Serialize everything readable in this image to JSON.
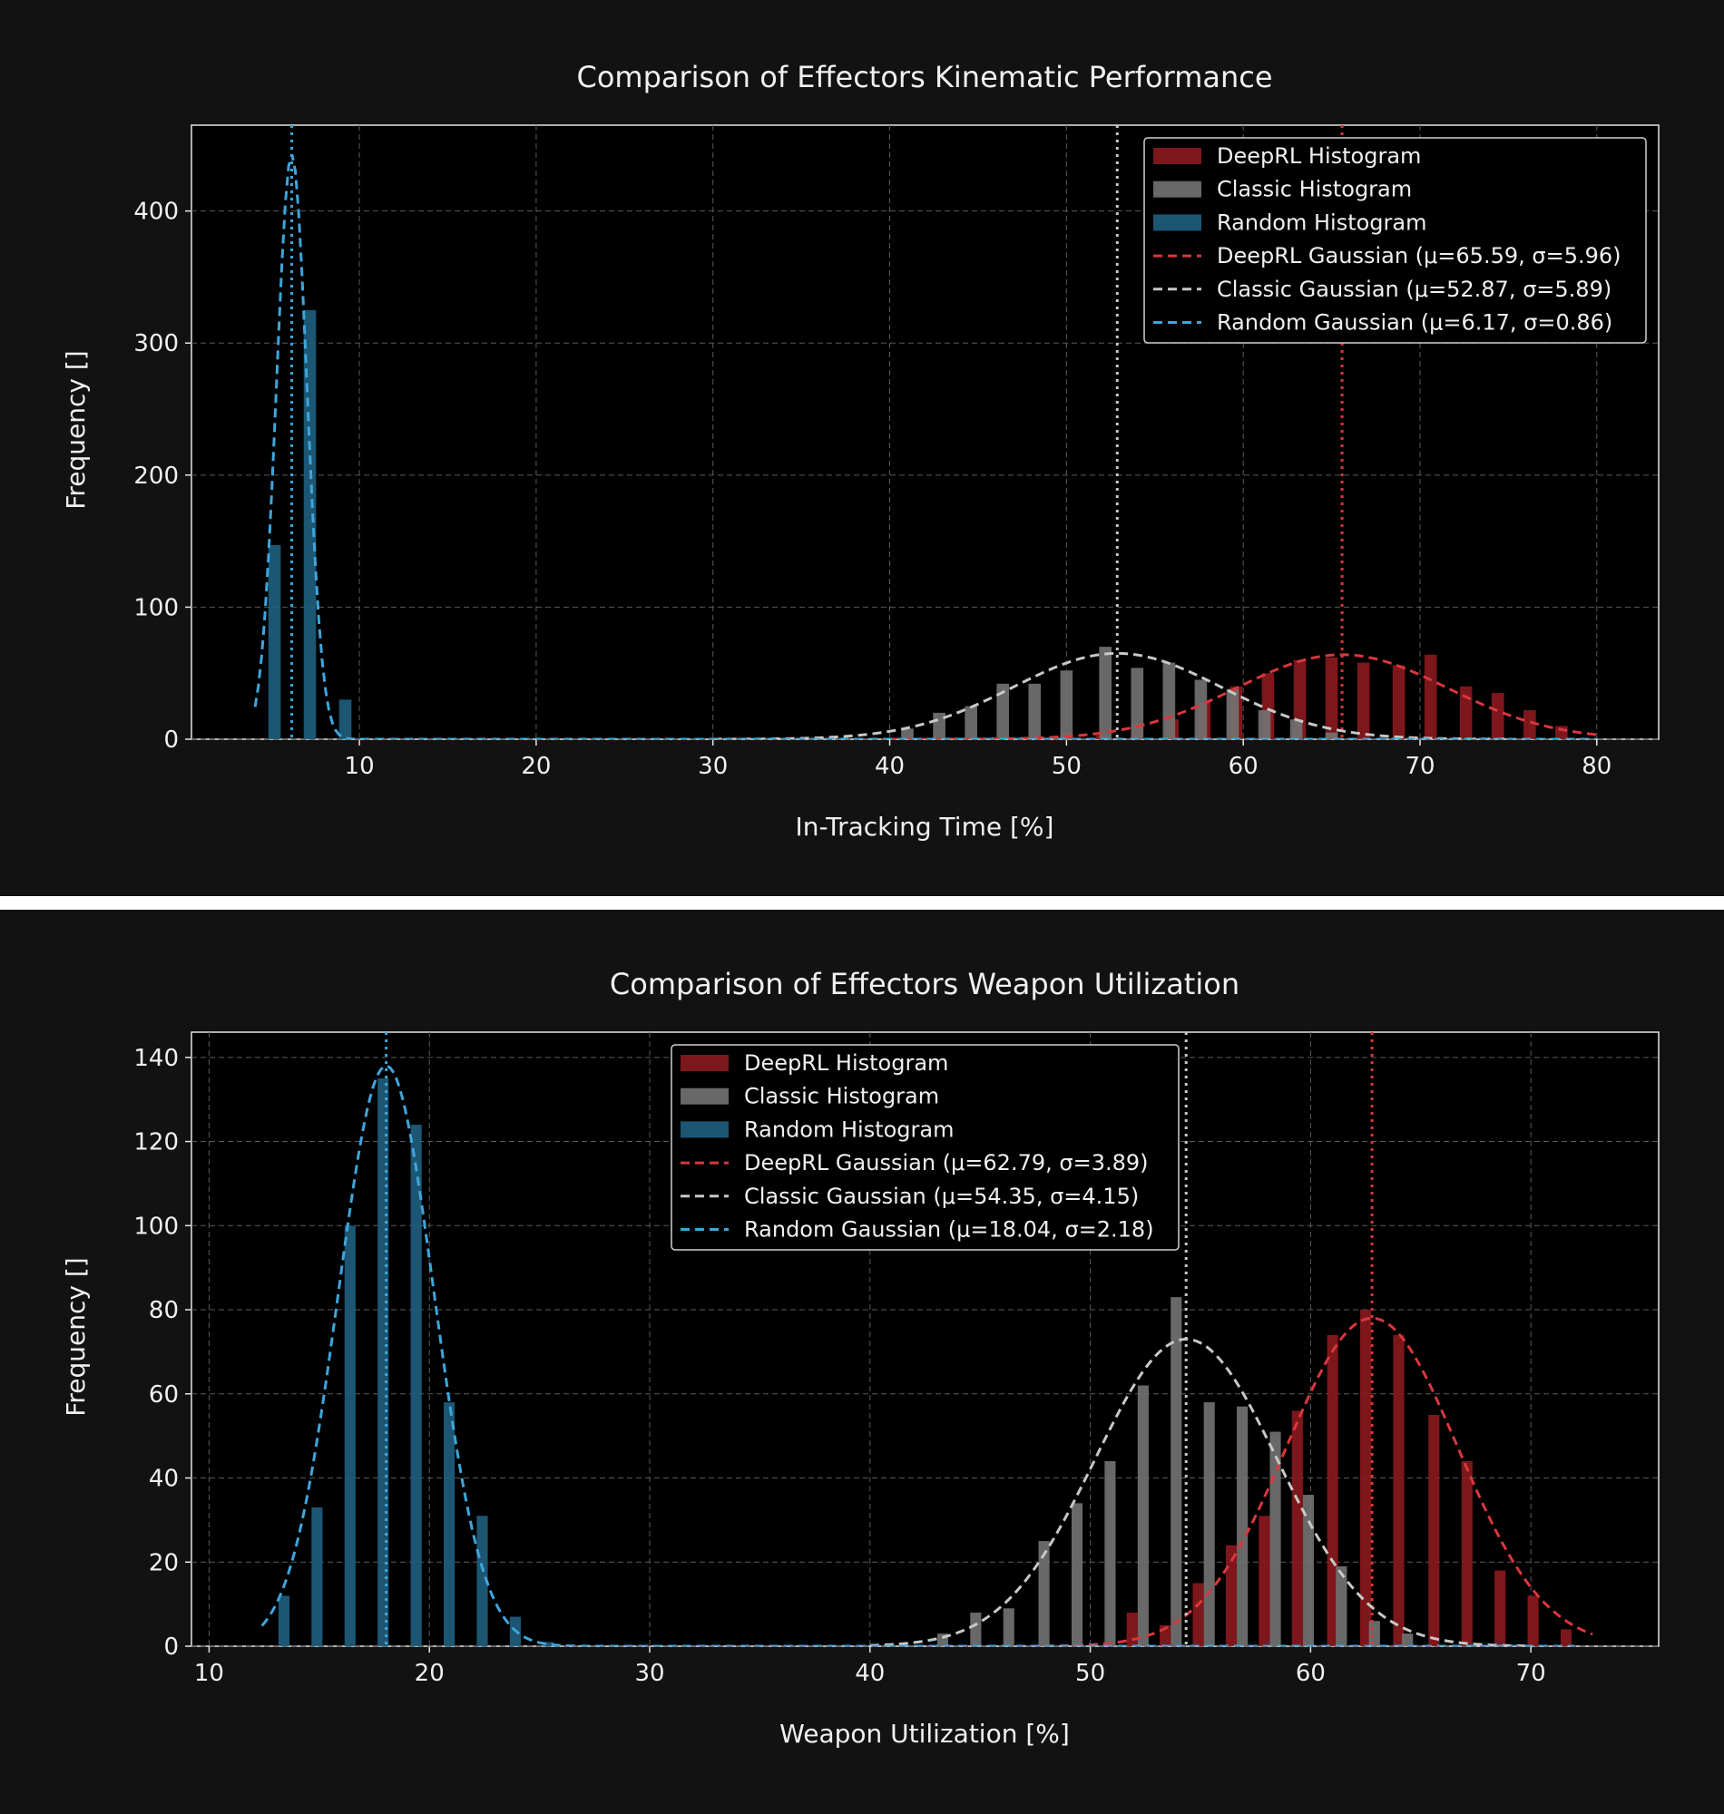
{
  "chart_data": [
    {
      "type": "bar",
      "title": "Comparison of Effectors Kinematic Performance",
      "xlabel": "In-Tracking Time [%]",
      "ylabel": "Frequency []",
      "xlim": [
        0.5,
        83.5
      ],
      "ylim": [
        0,
        465
      ],
      "xticks": [
        10,
        20,
        30,
        40,
        50,
        60,
        70,
        80
      ],
      "yticks": [
        0,
        100,
        200,
        300,
        400
      ],
      "grid": true,
      "legend_position": "upper right",
      "bar_width": 0.7,
      "series": [
        {
          "name": "DeepRL Histogram",
          "color": "#8b1a1e",
          "x": [
            50.0,
            52.0,
            54.0,
            56.0,
            57.8,
            59.6,
            61.4,
            63.2,
            65.0,
            66.8,
            68.8,
            70.6,
            72.6,
            74.4,
            76.2,
            78.0
          ],
          "values": [
            5,
            3,
            12,
            15,
            28,
            40,
            50,
            60,
            62,
            58,
            56,
            64,
            40,
            35,
            22,
            10
          ]
        },
        {
          "name": "Classic Histogram",
          "color": "#737373",
          "x": [
            41.0,
            42.8,
            44.6,
            46.4,
            48.2,
            50.0,
            52.2,
            54.0,
            55.8,
            57.6,
            59.4,
            61.2,
            63.0,
            65.0
          ],
          "values": [
            8,
            20,
            25,
            42,
            42,
            52,
            70,
            54,
            58,
            45,
            38,
            22,
            15,
            5
          ]
        },
        {
          "name": "Random Histogram",
          "color": "#1f5f80",
          "x": [
            5.2,
            7.2,
            9.2
          ],
          "values": [
            147,
            325,
            30
          ]
        }
      ],
      "gaussians": [
        {
          "name": "DeepRL Gaussian (μ=65.59, σ=5.96)",
          "mu": 65.59,
          "sigma": 5.96,
          "peak": 64,
          "range": [
            40,
            80
          ],
          "color": "#d9373d"
        },
        {
          "name": "Classic Gaussian (μ=52.87, σ=5.89)",
          "mu": 52.87,
          "sigma": 5.89,
          "peak": 65,
          "range": [
            30,
            75
          ],
          "color": "#c8c8c8"
        },
        {
          "name": "Random Gaussian (μ=6.17, σ=0.86)",
          "mu": 6.17,
          "sigma": 0.86,
          "peak": 443,
          "range": [
            4.1,
            80
          ],
          "color": "#3ea6db"
        }
      ]
    },
    {
      "type": "bar",
      "title": "Comparison of Effectors Weapon Utilization",
      "xlabel": "Weapon Utilization [%]",
      "ylabel": "Frequency []",
      "xlim": [
        9.2,
        75.8
      ],
      "ylim": [
        0,
        146
      ],
      "xticks": [
        10,
        20,
        30,
        40,
        50,
        60,
        70
      ],
      "yticks": [
        0,
        20,
        40,
        60,
        80,
        100,
        120,
        140
      ],
      "grid": true,
      "legend_position": "upper center",
      "bar_width": 0.5,
      "series": [
        {
          "name": "DeepRL Histogram",
          "color": "#8b1a1e",
          "x": [
            50.0,
            51.9,
            53.4,
            54.9,
            56.4,
            57.9,
            59.4,
            61.0,
            62.5,
            64.0,
            65.6,
            67.1,
            68.6,
            70.1,
            71.6
          ],
          "values": [
            0,
            8,
            5,
            15,
            24,
            31,
            56,
            74,
            80,
            74,
            55,
            44,
            18,
            12,
            4
          ]
        },
        {
          "name": "Classic Histogram",
          "color": "#737373",
          "x": [
            43.3,
            44.8,
            46.3,
            47.9,
            49.4,
            50.9,
            52.4,
            53.9,
            55.4,
            56.9,
            58.4,
            59.9,
            61.4,
            62.9,
            64.4
          ],
          "values": [
            3,
            8,
            9,
            25,
            34,
            44,
            62,
            83,
            58,
            57,
            51,
            36,
            19,
            6,
            3
          ]
        },
        {
          "name": "Random Histogram",
          "color": "#1f5f80",
          "x": [
            13.4,
            14.9,
            16.4,
            17.9,
            19.4,
            20.9,
            22.4,
            23.9,
            25.4
          ],
          "values": [
            12,
            33,
            100,
            135,
            124,
            58,
            31,
            7,
            1
          ]
        }
      ],
      "gaussians": [
        {
          "name": "DeepRL Gaussian (μ=62.79, σ=3.89)",
          "mu": 62.79,
          "sigma": 3.89,
          "peak": 78,
          "range": [
            44,
            72.8
          ],
          "color": "#d9373d"
        },
        {
          "name": "Classic Gaussian (μ=54.35, σ=4.15)",
          "mu": 54.35,
          "sigma": 4.15,
          "peak": 73,
          "range": [
            40,
            70
          ],
          "color": "#c8c8c8"
        },
        {
          "name": "Random Gaussian (μ=18.04, σ=2.18)",
          "mu": 18.04,
          "sigma": 2.18,
          "peak": 138,
          "range": [
            12.4,
            72
          ],
          "color": "#3ea6db"
        }
      ]
    }
  ]
}
